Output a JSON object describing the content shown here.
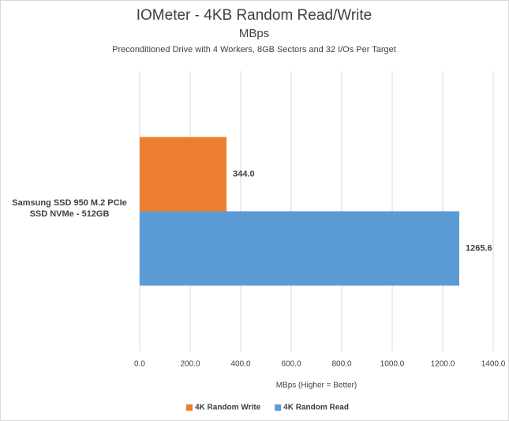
{
  "chart_data": {
    "type": "hbar",
    "title": "IOMeter - 4KB Random Read/Write",
    "subtitle": "MBps",
    "subtitle2": "Preconditioned Drive with 4 Workers, 8GB Sectors and 32  I/Os Per Target",
    "xlabel": "MBps (Higher = Better)",
    "categories": [
      "Samsung SSD 950 M.2 PCIe SSD NVMe - 512GB"
    ],
    "series": [
      {
        "name": "4K Random Write",
        "color": "#ed7d31",
        "values": [
          344.0
        ],
        "value_labels": [
          "344.0"
        ]
      },
      {
        "name": "4K Random Read",
        "color": "#5b9bd5",
        "values": [
          1265.6
        ],
        "value_labels": [
          "1265.6"
        ]
      }
    ],
    "xlim": [
      0,
      1400
    ],
    "xticks": [
      {
        "value": 0,
        "label": "0.0"
      },
      {
        "value": 200,
        "label": "200.0"
      },
      {
        "value": 400,
        "label": "400.0"
      },
      {
        "value": 600,
        "label": "600.0"
      },
      {
        "value": 800,
        "label": "800.0"
      },
      {
        "value": 1000,
        "label": "1000.0"
      },
      {
        "value": 1200,
        "label": "1200.0"
      },
      {
        "value": 1400,
        "label": "1400.0"
      }
    ],
    "grid": true,
    "legend": "bottom"
  }
}
